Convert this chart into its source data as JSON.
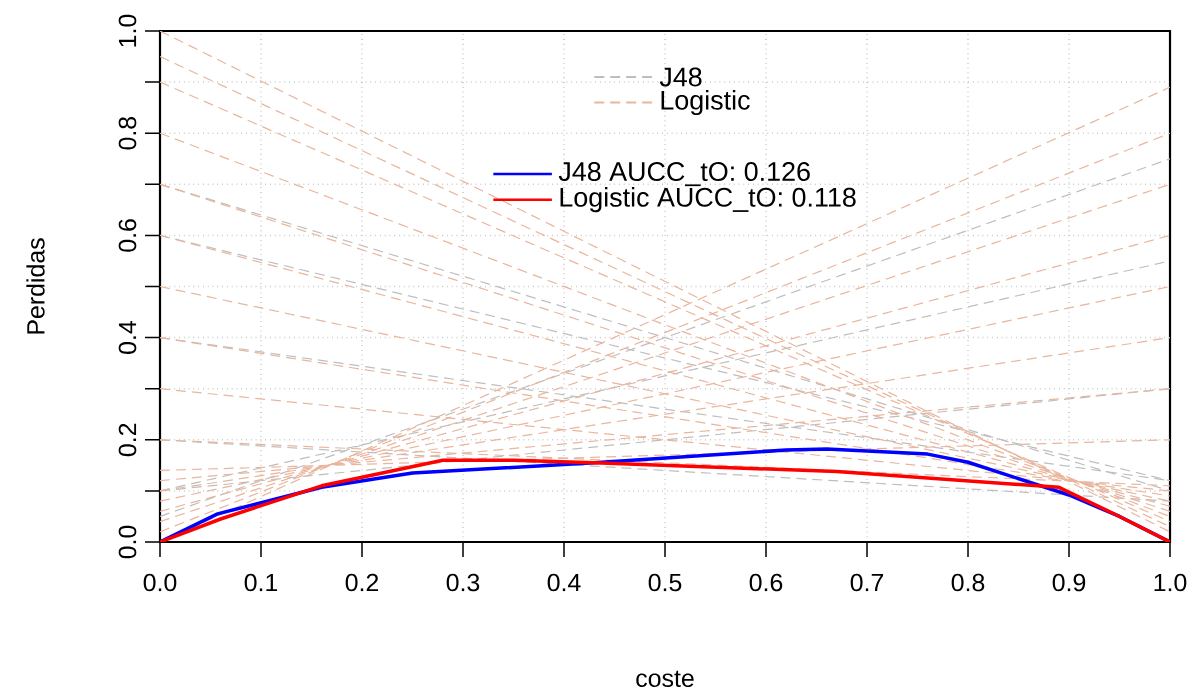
{
  "chart_data": {
    "type": "line",
    "xlabel": "coste",
    "ylabel": "Perdidas",
    "xlim": [
      0,
      1
    ],
    "ylim": [
      0,
      1
    ],
    "xticks": [
      {
        "value": 0,
        "label": "0.0"
      },
      {
        "value": 0.1,
        "label": "0.1"
      },
      {
        "value": 0.2,
        "label": "0.2"
      },
      {
        "value": 0.3,
        "label": "0.3"
      },
      {
        "value": 0.4,
        "label": "0.4"
      },
      {
        "value": 0.5,
        "label": "0.5"
      },
      {
        "value": 0.6,
        "label": "0.6"
      },
      {
        "value": 0.7,
        "label": "0.7"
      },
      {
        "value": 0.8,
        "label": "0.8"
      },
      {
        "value": 0.9,
        "label": "0.9"
      },
      {
        "value": 1,
        "label": "1.0"
      }
    ],
    "yticks": [
      {
        "value": 0,
        "label": "0.0"
      },
      {
        "value": 0.1,
        "label": null
      },
      {
        "value": 0.2,
        "label": "0.2"
      },
      {
        "value": 0.3,
        "label": null
      },
      {
        "value": 0.4,
        "label": "0.4"
      },
      {
        "value": 0.5,
        "label": null
      },
      {
        "value": 0.6,
        "label": "0.6"
      },
      {
        "value": 0.7,
        "label": null
      },
      {
        "value": 0.8,
        "label": "0.8"
      },
      {
        "value": 0.9,
        "label": null
      },
      {
        "value": 1,
        "label": "1.0"
      }
    ],
    "grid": true,
    "legend": "top",
    "marker": "none",
    "series": [
      {
        "name": "J48",
        "color": "#bebebe",
        "line_style": "dashed",
        "x": [
          0,
          1
        ],
        "values": [
          0.7,
          0.1
        ]
      },
      {
        "color": "#bebebe",
        "line_style": "dashed",
        "x": [
          0,
          1
        ],
        "values": [
          0.6,
          0.12
        ]
      },
      {
        "color": "#bebebe",
        "line_style": "dashed",
        "x": [
          0,
          1
        ],
        "values": [
          0.4,
          0.12
        ]
      },
      {
        "color": "#bebebe",
        "line_style": "dashed",
        "x": [
          0,
          1
        ],
        "values": [
          0.2,
          0.08
        ]
      },
      {
        "color": "#bebebe",
        "line_style": "dashed",
        "x": [
          0,
          1
        ],
        "values": [
          0.05,
          0.75
        ]
      },
      {
        "color": "#bebebe",
        "line_style": "dashed",
        "x": [
          0,
          1
        ],
        "values": [
          0.1,
          0.55
        ]
      },
      {
        "color": "#bebebe",
        "line_style": "dashed",
        "x": [
          0,
          1
        ],
        "values": [
          0.1,
          0.3
        ]
      },
      {
        "name": "Logistic",
        "color": "#e9b59c",
        "line_style": "dashed",
        "x": [
          0,
          1
        ],
        "values": [
          1.0,
          0.02
        ]
      },
      {
        "color": "#e9b59c",
        "line_style": "dashed",
        "x": [
          0,
          1
        ],
        "values": [
          0.95,
          0.03
        ]
      },
      {
        "color": "#e9b59c",
        "line_style": "dashed",
        "x": [
          0,
          1
        ],
        "values": [
          0.9,
          0.04
        ]
      },
      {
        "color": "#e9b59c",
        "line_style": "dashed",
        "x": [
          0,
          1
        ],
        "values": [
          0.8,
          0.05
        ]
      },
      {
        "color": "#e9b59c",
        "line_style": "dashed",
        "x": [
          0,
          1
        ],
        "values": [
          0.7,
          0.06
        ]
      },
      {
        "color": "#e9b59c",
        "line_style": "dashed",
        "x": [
          0,
          1
        ],
        "values": [
          0.6,
          0.07
        ]
      },
      {
        "color": "#e9b59c",
        "line_style": "dashed",
        "x": [
          0,
          1
        ],
        "values": [
          0.5,
          0.08
        ]
      },
      {
        "color": "#e9b59c",
        "line_style": "dashed",
        "x": [
          0,
          1
        ],
        "values": [
          0.4,
          0.09
        ]
      },
      {
        "color": "#e9b59c",
        "line_style": "dashed",
        "x": [
          0,
          1
        ],
        "values": [
          0.3,
          0.1
        ]
      },
      {
        "color": "#e9b59c",
        "line_style": "dashed",
        "x": [
          0,
          1
        ],
        "values": [
          0.2,
          0.11
        ]
      },
      {
        "color": "#e9b59c",
        "line_style": "dashed",
        "x": [
          0,
          1
        ],
        "values": [
          0.0,
          0.89
        ]
      },
      {
        "color": "#e9b59c",
        "line_style": "dashed",
        "x": [
          0,
          1
        ],
        "values": [
          0.02,
          0.8
        ]
      },
      {
        "color": "#e9b59c",
        "line_style": "dashed",
        "x": [
          0,
          1
        ],
        "values": [
          0.04,
          0.7
        ]
      },
      {
        "color": "#e9b59c",
        "line_style": "dashed",
        "x": [
          0,
          1
        ],
        "values": [
          0.06,
          0.6
        ]
      },
      {
        "color": "#e9b59c",
        "line_style": "dashed",
        "x": [
          0,
          1
        ],
        "values": [
          0.08,
          0.5
        ]
      },
      {
        "color": "#e9b59c",
        "line_style": "dashed",
        "x": [
          0,
          1
        ],
        "values": [
          0.1,
          0.4
        ]
      },
      {
        "color": "#e9b59c",
        "line_style": "dashed",
        "x": [
          0,
          1
        ],
        "values": [
          0.12,
          0.3
        ]
      },
      {
        "color": "#e9b59c",
        "line_style": "dashed",
        "x": [
          0,
          1
        ],
        "values": [
          0.14,
          0.2
        ]
      },
      {
        "name": "J48 AUCC_tO: 0.126",
        "color": "#0000ff",
        "line_style": "solid",
        "x": [
          0,
          0.057,
          0.16,
          0.25,
          0.43,
          0.62,
          0.66,
          0.76,
          0.8,
          0.9,
          0.95,
          1
        ],
        "values": [
          0,
          0.055,
          0.107,
          0.135,
          0.155,
          0.18,
          0.182,
          0.172,
          0.156,
          0.092,
          0.05,
          0
        ]
      },
      {
        "name": "Logistic AUCC_tO: 0.118",
        "color": "#ff0000",
        "line_style": "solid",
        "x": [
          0,
          0.06,
          0.16,
          0.28,
          0.35,
          0.43,
          0.67,
          0.89,
          0.95,
          1
        ],
        "values": [
          0,
          0.045,
          0.11,
          0.16,
          0.16,
          0.155,
          0.138,
          0.107,
          0.05,
          0
        ]
      }
    ]
  }
}
